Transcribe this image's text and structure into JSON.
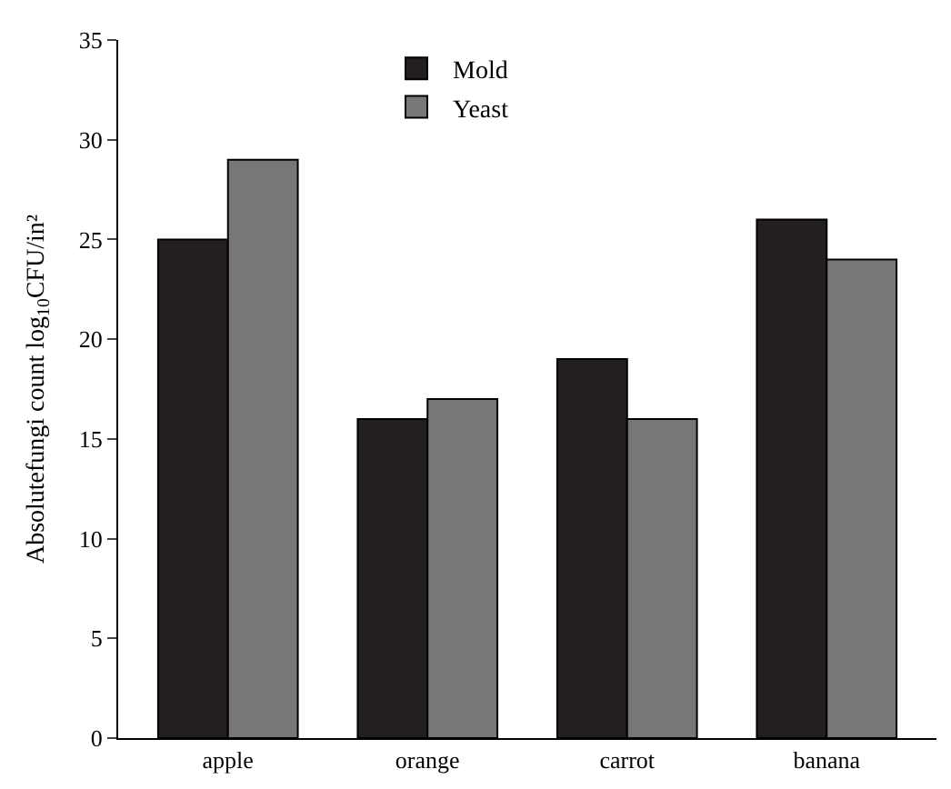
{
  "chart_data": {
    "type": "bar",
    "ylabel": "Absolutefungi count log$_{10}$CFU/in²",
    "categories": [
      "apple",
      "orange",
      "carrot",
      "banana"
    ],
    "series": [
      {
        "name": "Mold",
        "color": "#231f20",
        "values": [
          25,
          16,
          19,
          26
        ]
      },
      {
        "name": "Yeast",
        "color": "#777777",
        "values": [
          29,
          17,
          16,
          24
        ]
      }
    ],
    "ylim": [
      0,
      35
    ],
    "yticks": [
      0,
      5,
      10,
      15,
      20,
      25,
      30,
      35
    ],
    "legend": "top"
  }
}
